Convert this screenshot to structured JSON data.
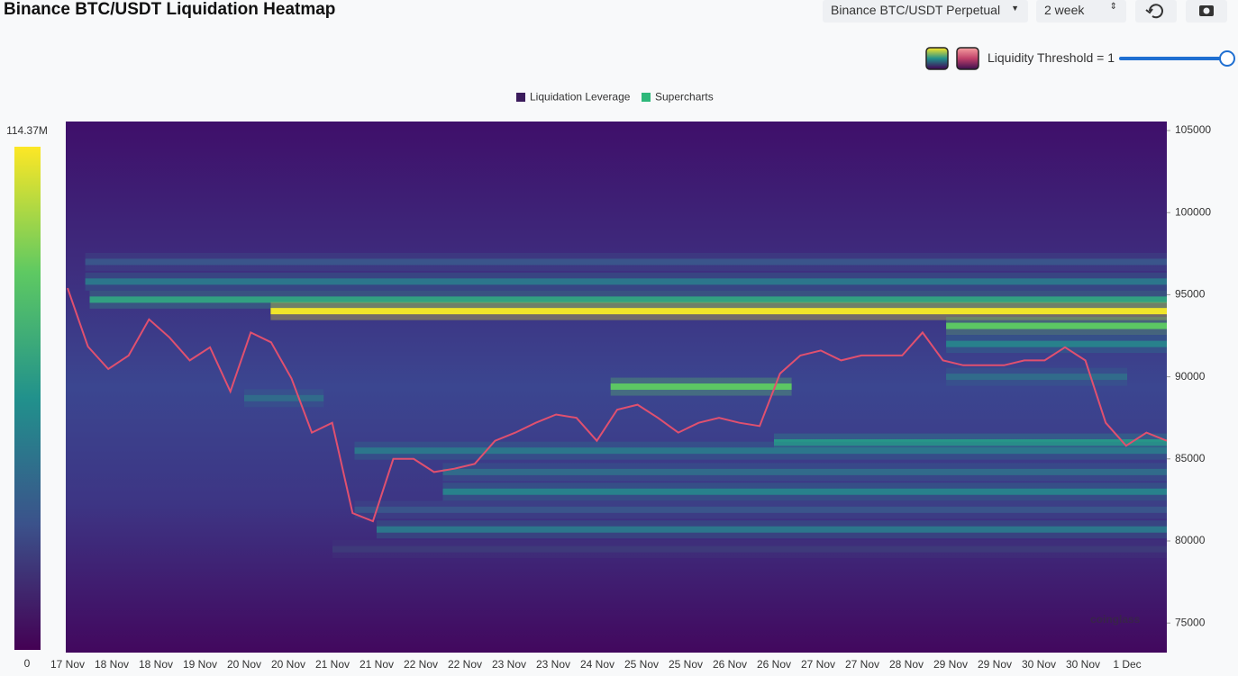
{
  "header": {
    "title": "Binance BTC/USDT Liquidation Heatmap",
    "exchange": "Binance BTC/USDT Perpetual",
    "range": "2 week",
    "threshold": "Liquidity Threshold = 1"
  },
  "chart_data": {
    "type": "heatmap",
    "legend": [
      {
        "name": "Liquidation Leverage",
        "color": "#3b1b5c"
      },
      {
        "name": "Supercharts",
        "color": "#2eb87a"
      }
    ],
    "categories": [
      "17 Nov",
      "18 Nov",
      "18 Nov",
      "19 Nov",
      "20 Nov",
      "20 Nov",
      "21 Nov",
      "21 Nov",
      "22 Nov",
      "22 Nov",
      "23 Nov",
      "23 Nov",
      "24 Nov",
      "25 Nov",
      "25 Nov",
      "26 Nov",
      "26 Nov",
      "27 Nov",
      "27 Nov",
      "28 Nov",
      "29 Nov",
      "29 Nov",
      "30 Nov",
      "30 Nov",
      "1 Dec"
    ],
    "ylim": [
      73200,
      105550
    ],
    "yticks": [
      75000,
      80000,
      85000,
      90000,
      95000,
      100000,
      105000
    ],
    "colorbar": {
      "min": 0,
      "max": {
        "value": 114370000,
        "label": "114.37M"
      }
    },
    "bands": [
      {
        "price": 97000,
        "value": 30000000,
        "from": 0.4,
        "to": 24.9
      },
      {
        "price": 95800,
        "value": 45000000,
        "from": 0.4,
        "to": 24.9
      },
      {
        "price": 94700,
        "value": 65000000,
        "from": 0.5,
        "to": 24.9
      },
      {
        "price": 94000,
        "value": 112000000,
        "from": 4.6,
        "to": 24.9
      },
      {
        "price": 93100,
        "value": 85000000,
        "from": 19.9,
        "to": 24.9
      },
      {
        "price": 92000,
        "value": 50000000,
        "from": 19.9,
        "to": 24.9
      },
      {
        "price": 90000,
        "value": 40000000,
        "from": 19.9,
        "to": 24.0
      },
      {
        "price": 89400,
        "value": 85000000,
        "from": 12.3,
        "to": 16.4
      },
      {
        "price": 88700,
        "value": 40000000,
        "from": 4.0,
        "to": 5.8
      },
      {
        "price": 86000,
        "value": 60000000,
        "from": 16.0,
        "to": 24.9
      },
      {
        "price": 85500,
        "value": 45000000,
        "from": 6.5,
        "to": 24.9
      },
      {
        "price": 84200,
        "value": 40000000,
        "from": 8.5,
        "to": 24.9
      },
      {
        "price": 83000,
        "value": 50000000,
        "from": 8.5,
        "to": 24.9
      },
      {
        "price": 81900,
        "value": 30000000,
        "from": 6.5,
        "to": 24.9
      },
      {
        "price": 80700,
        "value": 45000000,
        "from": 7.0,
        "to": 24.9
      },
      {
        "price": 79500,
        "value": 20000000,
        "from": 6.0,
        "to": 24.9
      }
    ],
    "price": {
      "color": "#e0506f",
      "values": [
        95400,
        91840,
        90470,
        91300,
        93500,
        92400,
        91000,
        91800,
        89100,
        92700,
        92100,
        89900,
        86600,
        87200,
        81700,
        81200,
        85000,
        85000,
        84200,
        84400,
        84700,
        86100,
        86600,
        87200,
        87700,
        87500,
        86100,
        88000,
        88300,
        87500,
        86600,
        87200,
        87500,
        87200,
        87000,
        90200,
        91300,
        91600,
        91000,
        91300,
        91300,
        91300,
        92700,
        91000,
        90700,
        90700,
        90700,
        91000,
        91000,
        91800,
        91000,
        87200,
        85800,
        86600,
        86100
      ]
    },
    "watermark": "coinglass"
  }
}
